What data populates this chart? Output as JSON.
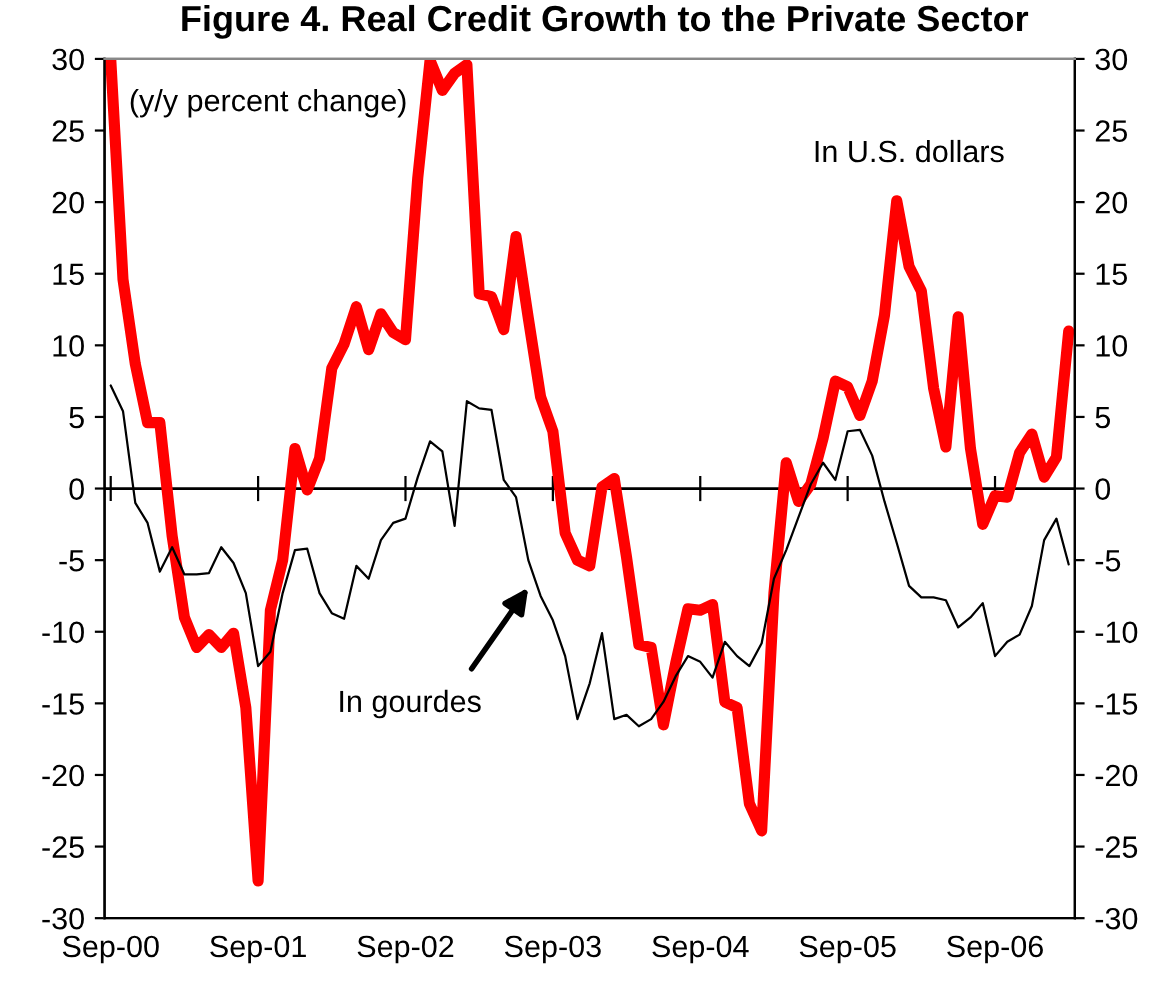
{
  "chart_data": {
    "type": "line",
    "title": "Figure 4. Real Credit Growth to the Private Sector",
    "annotations": [
      "(y/y percent change)"
    ],
    "categories": [
      "Sep-00",
      null,
      null,
      null,
      null,
      null,
      null,
      null,
      null,
      null,
      null,
      null,
      "Sep-01",
      null,
      null,
      null,
      null,
      null,
      null,
      null,
      null,
      null,
      null,
      null,
      "Sep-02",
      null,
      null,
      null,
      null,
      null,
      null,
      null,
      null,
      null,
      null,
      null,
      "Sep-03",
      null,
      null,
      null,
      null,
      null,
      null,
      null,
      null,
      null,
      null,
      null,
      "Sep-04",
      null,
      null,
      null,
      null,
      null,
      null,
      null,
      null,
      null,
      null,
      null,
      "Sep-05",
      null,
      null,
      null,
      null,
      null,
      null,
      null,
      null,
      null,
      null,
      null,
      "Sep-06",
      null,
      null,
      null,
      null,
      null,
      null
    ],
    "series": [
      {
        "name": "In U.S. dollars",
        "color": "#ff0000",
        "values": [
          30,
          14.6,
          8.7,
          4.6,
          4.6,
          -3.3,
          -9.0,
          -11.1,
          -10.2,
          -11.1,
          -10.1,
          -15.3,
          -27.4,
          -8.5,
          -5.0,
          2.8,
          -0.1,
          2.1,
          8.4,
          10.1,
          12.7,
          9.7,
          12.2,
          10.9,
          10.4,
          21.7,
          29.9,
          27.8,
          29.0,
          29.6,
          13.6,
          13.4,
          11.1,
          17.6,
          11.9,
          6.4,
          4.0,
          -3.1,
          -5.0,
          -5.4,
          0.1,
          0.7,
          -4.8,
          -10.9,
          -11.1,
          -16.5,
          -12.2,
          -8.4,
          -8.5,
          -8.1,
          -14.9,
          -15.3,
          -22.0,
          -23.9,
          -7.3,
          1.8,
          -0.9,
          0.3,
          3.5,
          7.5,
          7.1,
          5.1,
          7.5,
          12.1,
          20.1,
          15.5,
          13.8,
          7.0,
          2.9,
          12.0,
          2.8,
          -2.5,
          -0.5,
          -0.6,
          2.5,
          3.8,
          0.8,
          2.2,
          11.0
        ]
      },
      {
        "name": "In gourdes",
        "color": "#000000",
        "values": [
          7.2,
          5.4,
          -1.0,
          -2.4,
          -5.8,
          -4.1,
          -6.0,
          -6.0,
          -5.9,
          -4.1,
          -5.2,
          -7.3,
          -12.4,
          -11.4,
          -7.3,
          -4.3,
          -4.2,
          -7.3,
          -8.7,
          -9.1,
          -5.4,
          -6.3,
          -3.6,
          -2.4,
          -2.1,
          0.8,
          3.3,
          2.6,
          -2.6,
          6.1,
          5.6,
          5.5,
          0.6,
          -0.6,
          -5.0,
          -7.5,
          -9.2,
          -11.7,
          -16.1,
          -13.6,
          -10.1,
          -16.1,
          -15.8,
          -16.6,
          -16.1,
          -14.9,
          -13.1,
          -11.7,
          -12.1,
          -13.2,
          -10.7,
          -11.7,
          -12.4,
          -10.8,
          -6.3,
          -4.3,
          -2.0,
          0.3,
          1.8,
          0.6,
          4.0,
          4.1,
          2.3,
          -0.9,
          -3.8,
          -6.8,
          -7.6,
          -7.6,
          -7.8,
          -9.7,
          -9.0,
          -8.0,
          -11.7,
          -10.7,
          -10.2,
          -8.2,
          -3.6,
          -2.1,
          -5.3
        ]
      }
    ],
    "ylim": [
      -30,
      30
    ],
    "yticks": [
      -30,
      -25,
      -20,
      -15,
      -10,
      -5,
      0,
      5,
      10,
      15,
      20,
      25,
      30
    ],
    "y2lim": [
      -30,
      30
    ],
    "y2ticks": [
      -30,
      -25,
      -20,
      -15,
      -10,
      -5,
      0,
      5,
      10,
      15,
      20,
      25,
      30
    ],
    "ref_lines": [
      {
        "axis": "y",
        "value": 0,
        "color": "#000000"
      }
    ],
    "grid": false,
    "legend": false,
    "marker": "none",
    "line_style": "solid"
  }
}
